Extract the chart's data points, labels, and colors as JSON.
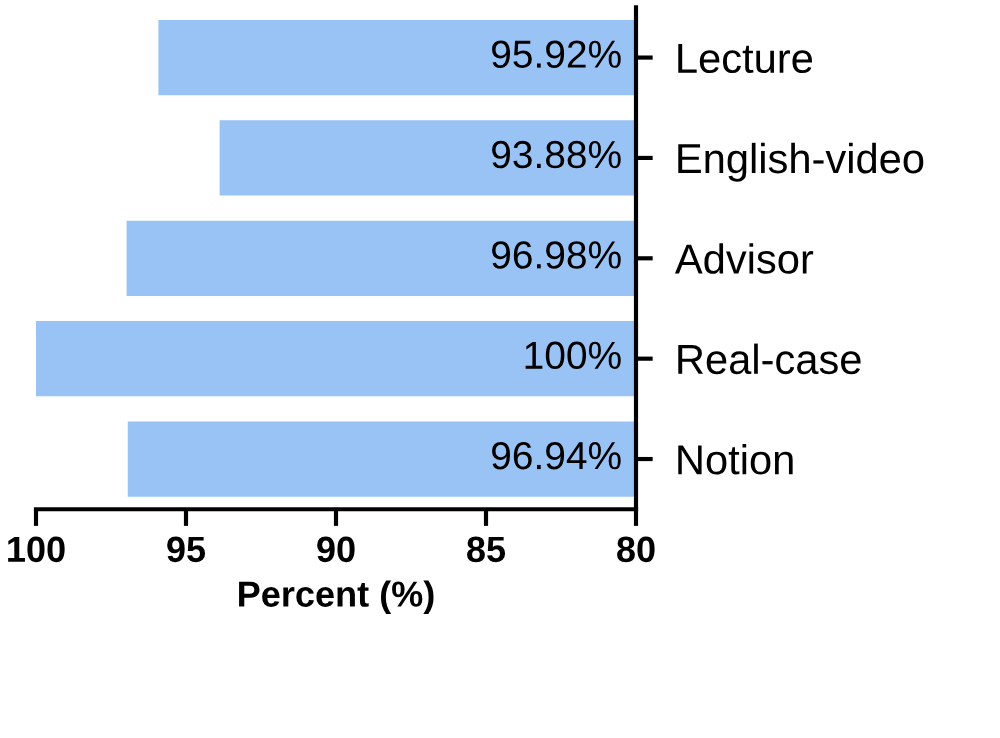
{
  "chart_data": {
    "type": "bar",
    "orientation": "horizontal",
    "xlabel": "Percent (%)",
    "categories": [
      "Lecture",
      "English-video",
      "Advisor",
      "Real-case",
      "Notion"
    ],
    "values": [
      95.92,
      93.88,
      96.98,
      100,
      96.94
    ],
    "value_labels": [
      "95.92%",
      "93.88%",
      "96.98%",
      "100%",
      "96.94%"
    ],
    "color": "#99c2f5",
    "xlim": [
      100,
      80
    ],
    "xticks": [
      100,
      95,
      90,
      85,
      80
    ],
    "grid": false,
    "legend": false
  }
}
